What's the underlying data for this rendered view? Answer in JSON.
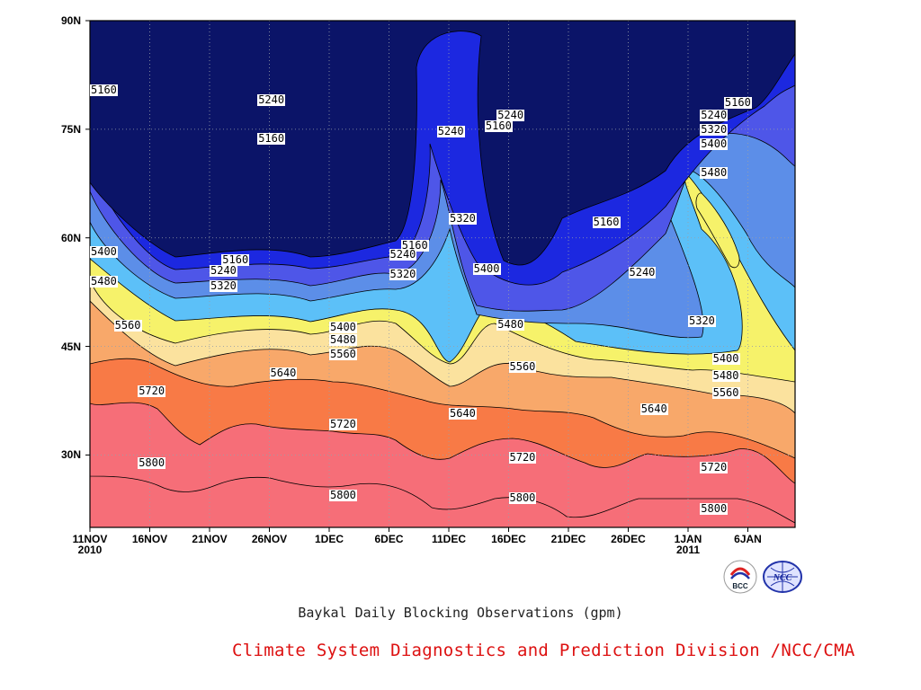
{
  "chart_data": {
    "type": "heatmap",
    "title": "Baykal Daily Blocking Observations (gpm)",
    "credit": "Climate System Diagnostics and Prediction Division /NCC/CMA",
    "x_ticks": [
      "11NOV\n2010",
      "16NOV",
      "21NOV",
      "26NOV",
      "1DEC",
      "6DEC",
      "11DEC",
      "16DEC",
      "21DEC",
      "26DEC",
      "1JAN\n2011",
      "6JAN"
    ],
    "y_ticks": [
      "90N",
      "75N",
      "60N",
      "45N",
      "30N"
    ],
    "x_range": [
      "2010-11-11",
      "2011-01-09"
    ],
    "y_range_deg_north": [
      20,
      90
    ],
    "grid": true,
    "levels": [
      5160,
      5240,
      5320,
      5400,
      5480,
      5560,
      5640,
      5720,
      5800
    ],
    "colors": [
      "#0b1468",
      "#1c28e0",
      "#4e56e8",
      "#5c8ee8",
      "#5cc0f8",
      "#f6f26a",
      "#fbe29e",
      "#f8a86a",
      "#f87a46",
      "#f66e78"
    ],
    "contour_labels": [
      {
        "text": "5160",
        "date": "2010-11-11",
        "lat": 80.3
      },
      {
        "text": "5240",
        "date": "2010-11-25",
        "lat": 79.0
      },
      {
        "text": "5160",
        "date": "2010-11-25",
        "lat": 73.6
      },
      {
        "text": "5240",
        "date": "2010-12-10",
        "lat": 74.6
      },
      {
        "text": "5240",
        "date": "2010-12-15",
        "lat": 76.8
      },
      {
        "text": "5160",
        "date": "2010-12-14",
        "lat": 75.3
      },
      {
        "text": "5160",
        "date": "2011-01-03",
        "lat": 78.6
      },
      {
        "text": "5240",
        "date": "2011-01-01",
        "lat": 76.8
      },
      {
        "text": "5320",
        "date": "2011-01-01",
        "lat": 74.9
      },
      {
        "text": "5400",
        "date": "2011-01-01",
        "lat": 72.9
      },
      {
        "text": "5480",
        "date": "2011-01-01",
        "lat": 68.9
      },
      {
        "text": "5320",
        "date": "2010-12-11",
        "lat": 62.6
      },
      {
        "text": "5160",
        "date": "2010-12-23",
        "lat": 62.1
      },
      {
        "text": "5160",
        "date": "2010-12-07",
        "lat": 58.9
      },
      {
        "text": "5240",
        "date": "2010-12-06",
        "lat": 57.6
      },
      {
        "text": "5160",
        "date": "2010-11-22",
        "lat": 56.9
      },
      {
        "text": "5240",
        "date": "2010-11-21",
        "lat": 55.4
      },
      {
        "text": "5320",
        "date": "2010-11-21",
        "lat": 53.3
      },
      {
        "text": "5320",
        "date": "2010-12-06",
        "lat": 54.9
      },
      {
        "text": "5240",
        "date": "2010-12-26",
        "lat": 55.1
      },
      {
        "text": "5400",
        "date": "2010-11-11",
        "lat": 58.0
      },
      {
        "text": "5480",
        "date": "2010-11-11",
        "lat": 53.9
      },
      {
        "text": "5400",
        "date": "2010-12-13",
        "lat": 55.6
      },
      {
        "text": "5320",
        "date": "2010-12-31",
        "lat": 48.4
      },
      {
        "text": "5560",
        "date": "2010-11-13",
        "lat": 47.8
      },
      {
        "text": "5400",
        "date": "2010-12-01",
        "lat": 47.6
      },
      {
        "text": "5480",
        "date": "2010-12-01",
        "lat": 45.8
      },
      {
        "text": "5480",
        "date": "2010-12-15",
        "lat": 47.9
      },
      {
        "text": "5560",
        "date": "2010-12-01",
        "lat": 43.8
      },
      {
        "text": "5400",
        "date": "2011-01-02",
        "lat": 43.2
      },
      {
        "text": "5640",
        "date": "2010-11-26",
        "lat": 41.2
      },
      {
        "text": "5560",
        "date": "2010-12-16",
        "lat": 42.1
      },
      {
        "text": "5480",
        "date": "2011-01-02",
        "lat": 40.9
      },
      {
        "text": "5720",
        "date": "2010-11-15",
        "lat": 38.8
      },
      {
        "text": "5560",
        "date": "2011-01-02",
        "lat": 38.5
      },
      {
        "text": "5640",
        "date": "2010-12-11",
        "lat": 35.6
      },
      {
        "text": "5640",
        "date": "2010-12-27",
        "lat": 36.2
      },
      {
        "text": "5720",
        "date": "2010-12-01",
        "lat": 34.1
      },
      {
        "text": "5800",
        "date": "2010-11-15",
        "lat": 28.8
      },
      {
        "text": "5720",
        "date": "2010-12-16",
        "lat": 29.5
      },
      {
        "text": "5720",
        "date": "2011-01-01",
        "lat": 28.2
      },
      {
        "text": "5800",
        "date": "2010-12-01",
        "lat": 24.3
      },
      {
        "text": "5800",
        "date": "2010-12-16",
        "lat": 24.0
      },
      {
        "text": "5800",
        "date": "2011-01-01",
        "lat": 22.5
      }
    ]
  },
  "logos": [
    {
      "icon": "bcc-logo-icon",
      "text": "BCC"
    },
    {
      "icon": "ncc-logo-icon",
      "text": "NCC"
    }
  ]
}
